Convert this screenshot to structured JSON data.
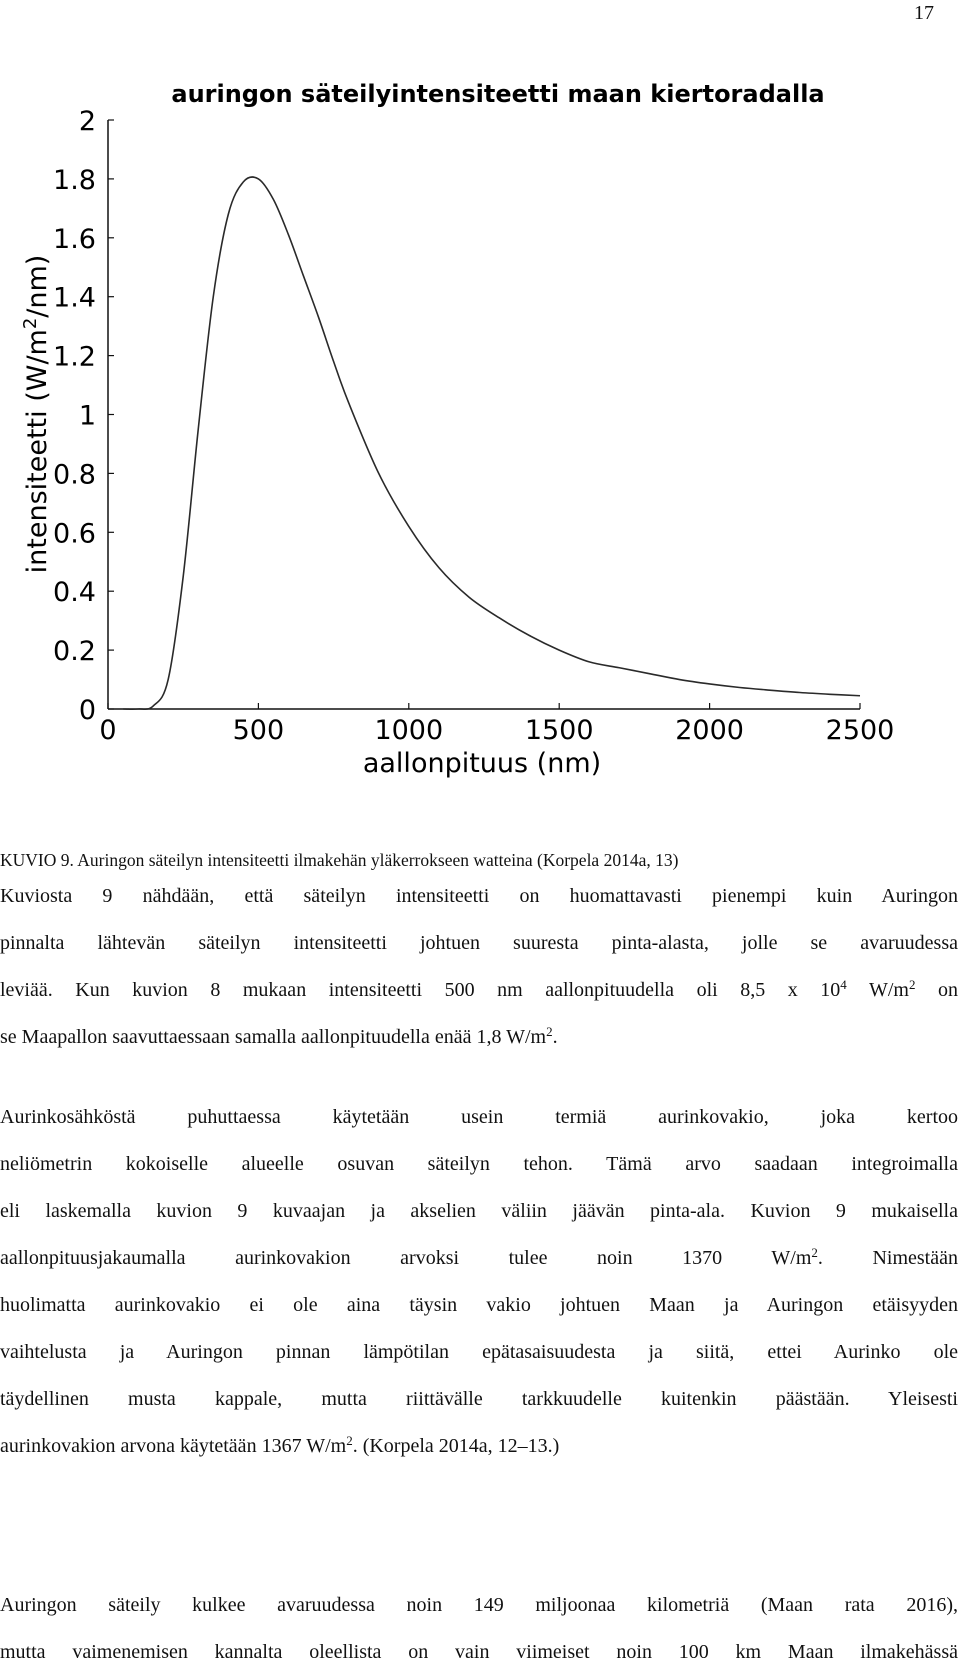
{
  "page": {
    "number": "17"
  },
  "chart_data": {
    "type": "line",
    "title": "auringon säteilyintensiteetti maan kiertoradalla",
    "xlabel": "aallonpituus (nm)",
    "ylabel_parts": [
      "intensiteetti (W/m",
      "2",
      "/nm)"
    ],
    "xlim": [
      0,
      2500
    ],
    "ylim": [
      0,
      2
    ],
    "xticks": [
      0,
      500,
      1000,
      1500,
      2000,
      2500
    ],
    "xtick_labels": [
      "0",
      "500",
      "1000",
      "1500",
      "2000",
      "2500"
    ],
    "yticks": [
      0,
      0.2,
      0.4,
      0.6,
      0.8,
      1,
      1.2,
      1.4,
      1.6,
      1.8,
      2
    ],
    "ytick_labels": [
      "0",
      "0.2",
      "0.4",
      "0.6",
      "0.8",
      "1",
      "1.2",
      "1.4",
      "1.6",
      "1.8",
      "2"
    ],
    "grid": false,
    "line_color": "#2a2a2a",
    "series": [
      {
        "x": [
          50,
          100,
          150,
          200,
          250,
          300,
          350,
          400,
          450,
          500,
          550,
          600,
          650,
          700,
          750,
          800,
          900,
          1000,
          1100,
          1200,
          1300,
          1400,
          1500,
          1600,
          1700,
          1800,
          1900,
          2000,
          2100,
          2200,
          2300,
          2400,
          2500
        ],
        "values": [
          0,
          0,
          0.01,
          0.1,
          0.45,
          0.95,
          1.4,
          1.68,
          1.79,
          1.8,
          1.73,
          1.61,
          1.47,
          1.33,
          1.18,
          1.04,
          0.8,
          0.62,
          0.48,
          0.38,
          0.31,
          0.25,
          0.2,
          0.16,
          0.14,
          0.12,
          0.1,
          0.085,
          0.073,
          0.064,
          0.056,
          0.05,
          0.045
        ]
      }
    ]
  },
  "caption": "KUVIO 9. Auringon säteilyn intensiteetti ilmakehän yläkerrokseen watteina (Korpela 2014a, 13)",
  "paragraph1": {
    "line1": "Kuviosta 9 nähdään, että säteilyn intensiteetti on huomattavasti pienempi kuin Auringon",
    "line2": "pinnalta lähtevän säteilyn intensiteetti johtuen suuresta pinta-alasta, jolle se avaruudessa",
    "line3a": "leviää. Kun kuvion 8 mukaan intensiteetti 500 nm aallonpituudella oli 8,5 x 10",
    "line3sup1": "4",
    "line3b": " W/m",
    "line3sup2": "2",
    "line3c": " on",
    "line4a": "se Maapallon saavuttaessaan samalla aallonpituudella enää 1,8 W/m",
    "line4sup": "2",
    "line4b": "."
  },
  "paragraph2": {
    "line1": "Aurinkosähköstä puhuttaessa käytetään usein termiä aurinkovakio, joka kertoo",
    "line2": "neliömetrin kokoiselle alueelle osuvan säteilyn tehon. Tämä arvo saadaan integroimalla",
    "line3": "eli laskemalla kuvion 9 kuvaajan ja akselien väliin jäävän pinta-ala. Kuvion 9 mukaisella",
    "line4a": "aallonpituusjakaumalla aurinkovakion arvoksi tulee noin 1370 W/m",
    "line4sup": "2",
    "line4b": ". Nimestään",
    "line5": "huolimatta aurinkovakio ei ole aina täysin vakio johtuen Maan ja Auringon etäisyyden",
    "line6": "vaihtelusta ja Auringon pinnan lämpötilan epätasaisuudesta ja siitä, ettei Aurinko ole",
    "line7": "täydellinen musta kappale, mutta riittävälle tarkkuudelle kuitenkin päästään. Yleisesti",
    "line8a": "aurinkovakion arvona käytetään 1367 W/m",
    "line8sup": "2",
    "line8b": ". (Korpela 2014a, 12–13.)"
  },
  "paragraph3": {
    "line1": "Auringon säteily kulkee avaruudessa noin 149 miljoonaa kilometriä (Maan rata 2016),",
    "line2": "mutta vaimenemisen kannalta oleellista on vain viimeiset noin 100 km Maan ilmakehässä"
  }
}
